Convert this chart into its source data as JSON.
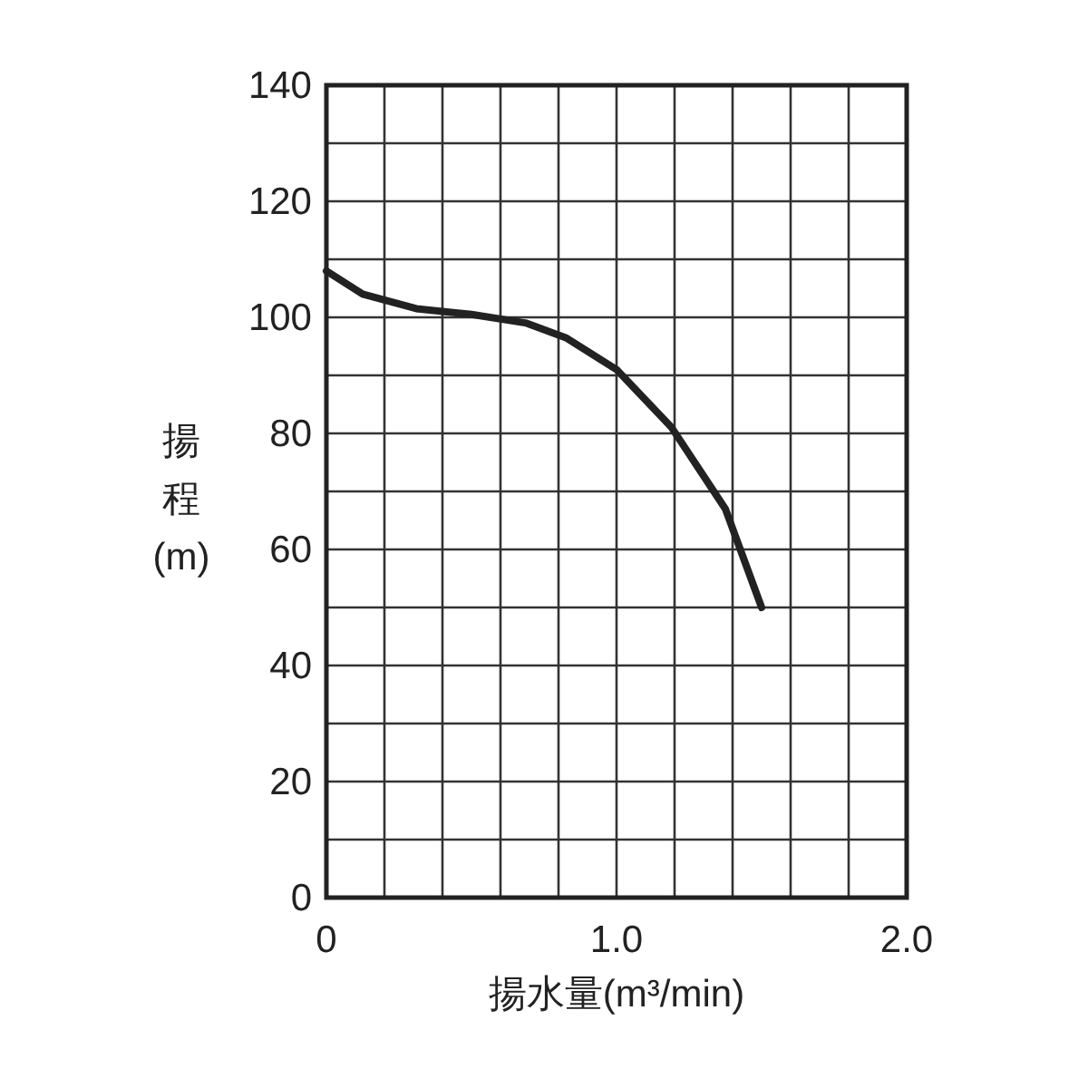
{
  "chart_data": {
    "type": "line",
    "xlabel": "揚水量(m³/min)",
    "ylabel": "揚程(m)",
    "x": [
      0,
      0.125,
      0.31,
      0.5,
      0.69,
      0.825,
      1.0,
      1.19,
      1.375,
      1.5
    ],
    "series": [
      {
        "color": "#222222",
        "values": [
          108,
          104,
          101.5,
          100.5,
          99,
          96.5,
          91,
          81,
          67,
          50
        ]
      }
    ],
    "xlim": [
      0,
      2
    ],
    "ylim": [
      0,
      140
    ],
    "xticks": [
      0,
      {
        "value": 0.2,
        "label": null
      },
      {
        "value": 0.4,
        "label": null
      },
      {
        "value": 0.6,
        "label": null
      },
      {
        "value": 0.8,
        "label": null
      },
      {
        "value": 1,
        "label": "1.0"
      },
      {
        "value": 1.2,
        "label": null
      },
      {
        "value": 1.4,
        "label": null
      },
      {
        "value": 1.6,
        "label": null
      },
      {
        "value": 1.8,
        "label": null
      },
      {
        "value": 2,
        "label": "2.0"
      }
    ],
    "yticks": [
      0,
      {
        "value": 10,
        "label": null
      },
      20,
      {
        "value": 30,
        "label": null
      },
      40,
      {
        "value": 50,
        "label": null
      },
      60,
      {
        "value": 70,
        "label": null
      },
      80,
      {
        "value": 90,
        "label": null
      },
      100,
      {
        "value": 110,
        "label": null
      },
      120,
      {
        "value": 130,
        "label": null
      },
      140
    ],
    "grid": true,
    "marker": "none",
    "line_style": "solid"
  }
}
